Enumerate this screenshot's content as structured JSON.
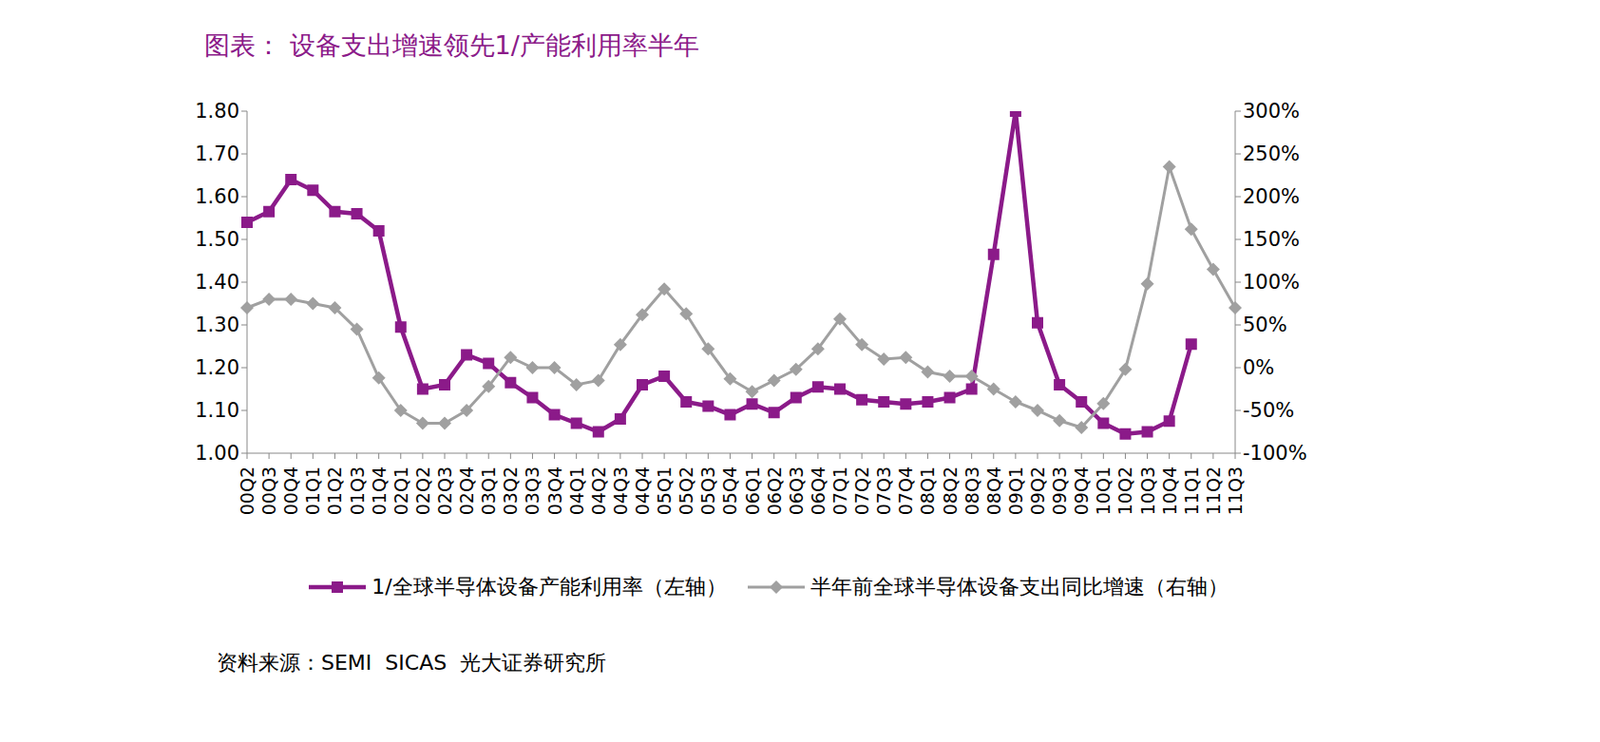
{
  "chart_data": {
    "type": "line",
    "title": "图表： 设备支出增速领先1/产能利用率半年",
    "source": "资料来源：SEMI  SICAS  光大证券研究所",
    "categories": [
      "00Q2",
      "00Q3",
      "00Q4",
      "01Q1",
      "01Q2",
      "01Q3",
      "01Q4",
      "02Q1",
      "02Q2",
      "02Q3",
      "02Q4",
      "03Q1",
      "03Q2",
      "03Q3",
      "03Q4",
      "04Q1",
      "04Q2",
      "04Q3",
      "04Q4",
      "05Q1",
      "05Q2",
      "05Q3",
      "05Q4",
      "06Q1",
      "06Q2",
      "06Q3",
      "06Q4",
      "07Q1",
      "07Q2",
      "07Q3",
      "07Q4",
      "08Q1",
      "08Q2",
      "08Q3",
      "08Q4",
      "09Q1",
      "09Q2",
      "09Q3",
      "09Q4",
      "10Q1",
      "10Q2",
      "10Q3",
      "10Q4",
      "11Q1",
      "11Q2",
      "11Q3"
    ],
    "series": [
      {
        "name": "1/全球半导体设备产能利用率（左轴）",
        "color": "#8B1A89",
        "marker": "square",
        "axis": "y",
        "values": [
          1.54,
          1.565,
          1.64,
          1.615,
          1.565,
          1.56,
          1.52,
          1.295,
          1.15,
          1.16,
          1.23,
          1.21,
          1.165,
          1.13,
          1.09,
          1.07,
          1.05,
          1.08,
          1.16,
          1.18,
          1.12,
          1.11,
          1.09,
          1.115,
          1.095,
          1.13,
          1.155,
          1.15,
          1.125,
          1.12,
          1.115,
          1.12,
          1.13,
          1.15,
          1.465,
          1.8,
          1.305,
          1.16,
          1.12,
          1.07,
          1.045,
          1.05,
          1.075,
          1.255,
          null,
          null
        ]
      },
      {
        "name": "半年前全球半导体设备支出同比增速（右轴）",
        "color": "#A0A0A0",
        "marker": "diamond",
        "axis": "y2",
        "values": [
          70,
          80,
          80,
          75,
          70,
          45,
          -12,
          -50,
          -65,
          -65,
          -50,
          -22,
          12,
          0,
          0,
          -20,
          -15,
          27,
          62,
          92,
          63,
          22,
          -13,
          -28,
          -15,
          -2,
          22,
          57,
          27,
          10,
          12,
          -5,
          -10,
          -10,
          -25,
          -40,
          -50,
          -62,
          -70,
          -42,
          -2,
          98,
          235,
          162,
          115,
          70
        ]
      }
    ],
    "ylim": [
      1.0,
      1.8
    ],
    "yticks": [
      {
        "value": 1.0,
        "label": "1.00"
      },
      {
        "value": 1.1,
        "label": "1.10"
      },
      {
        "value": 1.2,
        "label": "1.20"
      },
      {
        "value": 1.3,
        "label": "1.30"
      },
      {
        "value": 1.4,
        "label": "1.40"
      },
      {
        "value": 1.5,
        "label": "1.50"
      },
      {
        "value": 1.6,
        "label": "1.60"
      },
      {
        "value": 1.7,
        "label": "1.70"
      },
      {
        "value": 1.8,
        "label": "1.80"
      }
    ],
    "y2lim": [
      -100,
      300
    ],
    "y2ticks": [
      {
        "value": -100,
        "label": "-100%"
      },
      {
        "value": -50,
        "label": "-50%"
      },
      {
        "value": 0,
        "label": "0%"
      },
      {
        "value": 50,
        "label": "50%"
      },
      {
        "value": 100,
        "label": "100%"
      },
      {
        "value": 150,
        "label": "150%"
      },
      {
        "value": 200,
        "label": "200%"
      },
      {
        "value": 250,
        "label": "250%"
      },
      {
        "value": 300,
        "label": "300%"
      }
    ],
    "grid": false
  }
}
